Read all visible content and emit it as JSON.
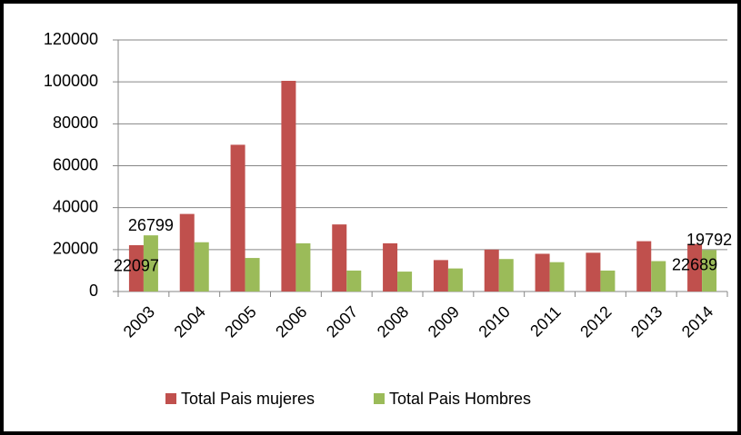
{
  "chart_data": {
    "type": "bar",
    "categories": [
      "2003",
      "2004",
      "2005",
      "2006",
      "2007",
      "2008",
      "2009",
      "2010",
      "2011",
      "2012",
      "2013",
      "2014"
    ],
    "series": [
      {
        "name": "Total Pais mujeres",
        "color": "#c0504d",
        "values": [
          22097,
          37000,
          70000,
          100500,
          32000,
          23000,
          15000,
          20000,
          18000,
          18500,
          24000,
          22689
        ],
        "value_labels": [
          "22097",
          null,
          null,
          null,
          null,
          null,
          null,
          null,
          null,
          null,
          null,
          "22689"
        ]
      },
      {
        "name": "Total Pais Hombres",
        "color": "#9bbb59",
        "values": [
          26799,
          23500,
          16000,
          23000,
          10000,
          9500,
          11000,
          15500,
          14000,
          10000,
          14500,
          19792
        ],
        "value_labels": [
          "26799",
          null,
          null,
          null,
          null,
          null,
          null,
          null,
          null,
          null,
          null,
          "19792"
        ]
      }
    ],
    "ylim": [
      0,
      120000
    ],
    "yticks": [
      0,
      20000,
      40000,
      60000,
      80000,
      100000,
      120000
    ],
    "grid": true,
    "legend": "bottom"
  }
}
